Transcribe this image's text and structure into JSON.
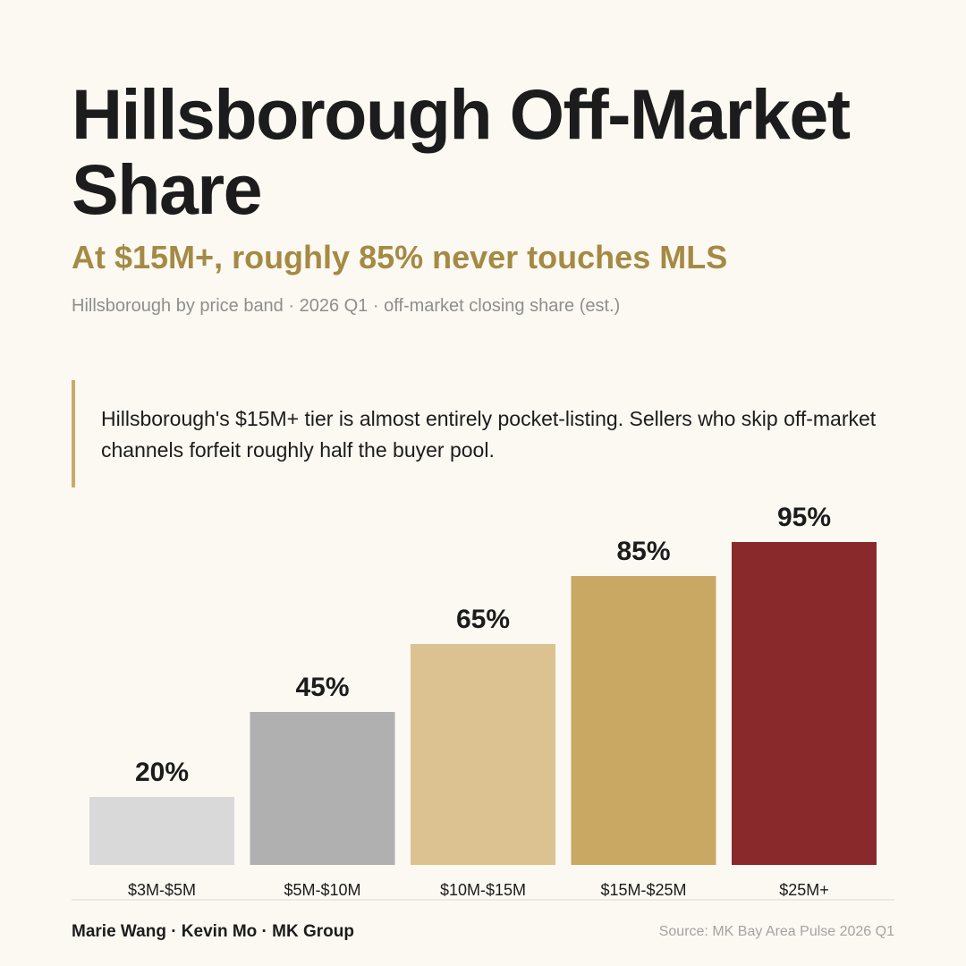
{
  "header": {
    "title": "Hillsborough Off-Market Share",
    "subtitle": "At $15M+, roughly 85% never touches MLS",
    "meta": "Hillsborough by price band · 2026 Q1 · off-market closing share (est.)"
  },
  "callout": {
    "text": "Hillsborough's $15M+ tier is almost entirely pocket-listing. Sellers who skip off-market channels forfeit roughly half the buyer pool."
  },
  "chart_data": {
    "type": "bar",
    "title": "Hillsborough Off-Market Share",
    "subtitle": "At $15M+, roughly 85% never touches MLS",
    "xlabel": "",
    "ylabel": "",
    "categories": [
      "$3M-$5M",
      "$5M-$10M",
      "$10M-$15M",
      "$15M-$25M",
      "$25M+"
    ],
    "values": [
      20,
      45,
      65,
      85,
      95
    ],
    "value_labels": [
      "20%",
      "45%",
      "65%",
      "85%",
      "95%"
    ],
    "colors": [
      "#d9d9d9",
      "#b0b0b0",
      "#dcc291",
      "#c9a864",
      "#8a292c"
    ],
    "ylim": [
      0,
      100
    ],
    "grid": false,
    "legend": "none"
  },
  "footer": {
    "credits": "Marie Wang · Kevin Mo · MK Group",
    "source": "Source: MK Bay Area Pulse 2026 Q1"
  }
}
